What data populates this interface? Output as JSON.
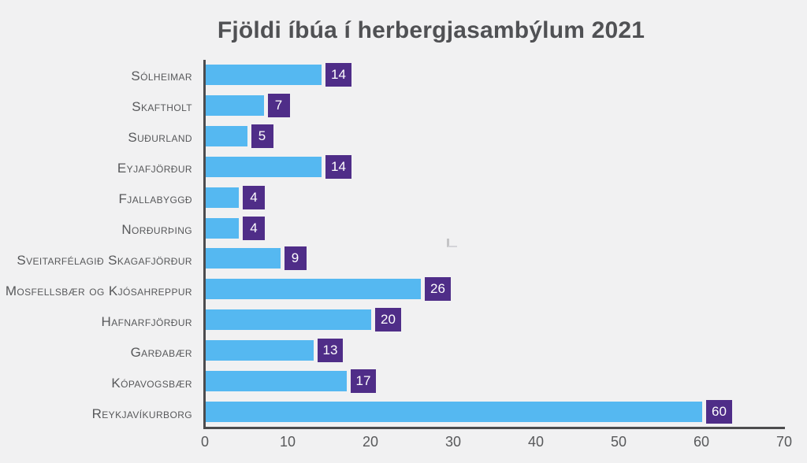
{
  "page": {
    "background_color": "#f1f1f2",
    "text_color": "#57585a",
    "axis_color": "#4c4c4e"
  },
  "chart_data": {
    "type": "bar",
    "orientation": "horizontal",
    "title": "Fjöldi íbúa í herbergjasambýlum 2021",
    "categories": [
      "Sólheimar",
      "Skaftholt",
      "Suðurland",
      "Eyjafjörður",
      "Fjallabyggð",
      "Norðurþing",
      "Sveitarfélagið Skagafjörður",
      "Mosfellsbær og Kjósahreppur",
      "Hafnarfjörður",
      "Garðabær",
      "Kópavogsbær",
      "Reykjavíkurborg"
    ],
    "values": [
      14,
      7,
      5,
      14,
      4,
      4,
      9,
      26,
      20,
      13,
      17,
      60
    ],
    "xlabel": "",
    "ylabel": "",
    "xlim": [
      0,
      70
    ],
    "xticks": [
      0,
      10,
      20,
      30,
      40,
      50,
      60,
      70
    ],
    "grid": false,
    "legend": "none",
    "data_labels": "on-bar-end-in-badge",
    "bar_color": "#55b8f1",
    "badge_bg_color": "#4f2d88",
    "badge_text_color": "#ffffff"
  }
}
